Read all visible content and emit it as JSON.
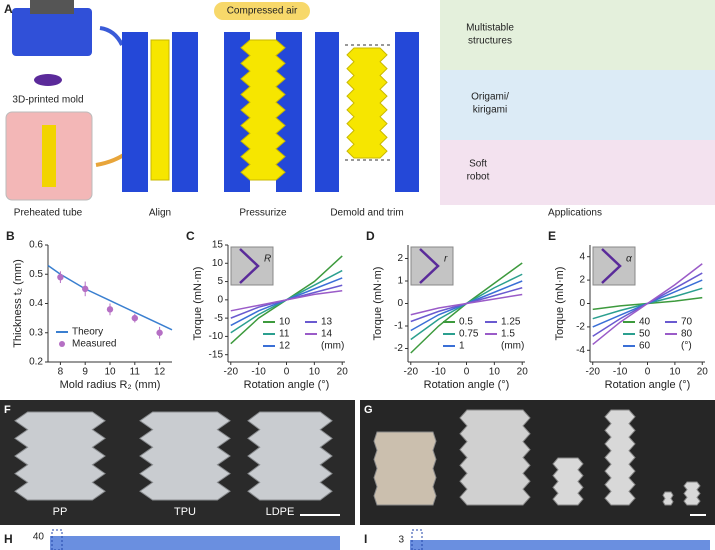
{
  "panel_a": {
    "label": "A",
    "mold": "3D-printed mold",
    "tube": "Preheated tube",
    "air": "Compressed air",
    "steps": [
      "Align",
      "Pressurize",
      "Demold and trim"
    ],
    "applications": [
      [
        "Multistable",
        "structures"
      ],
      [
        "Origami/",
        "kirigami"
      ],
      [
        "Soft",
        "robot"
      ]
    ],
    "applications_title": "Applications"
  },
  "chart_data": [
    {
      "type": "line",
      "panel": "B",
      "xlabel": "Mold radius R₂ (mm)",
      "ylabel": "Thickness t₂ (mm)",
      "xlim": [
        7.5,
        12.5
      ],
      "xticks": [
        8,
        9,
        10,
        11,
        12
      ],
      "ylim": [
        0.2,
        0.6
      ],
      "yticks": [
        0.2,
        0.3,
        0.4,
        0.5,
        0.6
      ],
      "legend": "lower left",
      "series": [
        {
          "name": "Theory",
          "color": "#3a7fd0",
          "x": [
            7.5,
            8,
            9,
            10,
            11,
            12,
            12.5
          ],
          "values": [
            0.53,
            0.5,
            0.45,
            0.41,
            0.37,
            0.33,
            0.31
          ]
        },
        {
          "name": "Measured",
          "color": "#b56fc4",
          "marker": "point",
          "x": [
            8,
            9,
            10,
            11,
            12
          ],
          "values": [
            0.49,
            0.45,
            0.38,
            0.35,
            0.3
          ],
          "errors": [
            0.02,
            0.025,
            0.02,
            0.015,
            0.02
          ]
        }
      ]
    },
    {
      "type": "line",
      "panel": "C",
      "xlabel": "Rotation angle (°)",
      "ylabel": "Torque (mN·m)",
      "inset_label": "R",
      "x": [
        -20,
        -10,
        0,
        10,
        20
      ],
      "xlim": [
        -21,
        21
      ],
      "xticks": [
        -20,
        -10,
        0,
        10,
        20
      ],
      "ylim": [
        -17,
        15
      ],
      "yticks": [
        -15,
        -10,
        -5,
        0,
        5,
        10,
        15
      ],
      "legend": "lower right",
      "legend_unit": "(mm)",
      "series": [
        {
          "name": "10",
          "color": "#3d9a3d",
          "values": [
            -12,
            -5,
            0,
            5,
            12
          ]
        },
        {
          "name": "11",
          "color": "#2b9f8f",
          "values": [
            -9,
            -4,
            0,
            4,
            8
          ]
        },
        {
          "name": "12",
          "color": "#3a6fd6",
          "values": [
            -7,
            -3,
            0,
            3,
            6
          ]
        },
        {
          "name": "13",
          "color": "#6a5ad0",
          "values": [
            -5,
            -2,
            0,
            2,
            4
          ]
        },
        {
          "name": "14",
          "color": "#9a5bc8",
          "values": [
            -3,
            -1.5,
            0,
            1.5,
            2.5
          ]
        }
      ]
    },
    {
      "type": "line",
      "panel": "D",
      "xlabel": "Rotation angle (°)",
      "ylabel": "Torque (mN·m)",
      "inset_label": "r",
      "x": [
        -20,
        -10,
        0,
        10,
        20
      ],
      "xlim": [
        -21,
        21
      ],
      "xticks": [
        -20,
        -10,
        0,
        10,
        20
      ],
      "ylim": [
        -2.6,
        2.6
      ],
      "yticks": [
        -2,
        -1,
        0,
        1,
        2
      ],
      "legend": "lower right",
      "legend_unit": "(mm)",
      "series": [
        {
          "name": "0.5",
          "color": "#3d9a3d",
          "values": [
            -2.2,
            -1,
            0,
            0.9,
            1.8
          ]
        },
        {
          "name": "0.75",
          "color": "#2b9f8f",
          "values": [
            -1.6,
            -0.7,
            0,
            0.7,
            1.3
          ]
        },
        {
          "name": "1",
          "color": "#3a6fd6",
          "values": [
            -1.2,
            -0.5,
            0,
            0.5,
            1
          ]
        },
        {
          "name": "1.25",
          "color": "#6a5ad0",
          "values": [
            -0.8,
            -0.35,
            0,
            0.35,
            0.7
          ]
        },
        {
          "name": "1.5",
          "color": "#9a5bc8",
          "values": [
            -0.5,
            -0.2,
            0,
            0.2,
            0.4
          ]
        }
      ]
    },
    {
      "type": "line",
      "panel": "E",
      "xlabel": "Rotation angle (°)",
      "ylabel": "Torque (mN·m)",
      "inset_label": "α",
      "x": [
        -20,
        -10,
        0,
        10,
        20
      ],
      "xlim": [
        -21,
        21
      ],
      "xticks": [
        -20,
        -10,
        0,
        10,
        20
      ],
      "ylim": [
        -5,
        5
      ],
      "yticks": [
        -4,
        -2,
        0,
        2,
        4
      ],
      "legend": "lower right",
      "legend_unit": "(°)",
      "series": [
        {
          "name": "40",
          "color": "#3d9a3d",
          "values": [
            -0.5,
            -0.2,
            0,
            0.2,
            0.5
          ]
        },
        {
          "name": "50",
          "color": "#2b9f8f",
          "values": [
            -1.3,
            -0.6,
            0,
            0.6,
            1.3
          ]
        },
        {
          "name": "60",
          "color": "#3a6fd6",
          "values": [
            -2,
            -1,
            0,
            1,
            2
          ]
        },
        {
          "name": "70",
          "color": "#6a5ad0",
          "values": [
            -2.8,
            -1.3,
            0,
            1.3,
            2.6
          ]
        },
        {
          "name": "80",
          "color": "#9a5bc8",
          "values": [
            -3.5,
            -1.6,
            0,
            1.6,
            3.4
          ]
        }
      ]
    }
  ],
  "panel_f": {
    "label": "F",
    "materials": [
      "PP",
      "TPU",
      "LDPE"
    ]
  },
  "panel_g": {
    "label": "G"
  },
  "panel_h": {
    "label": "H",
    "ytick": "40"
  },
  "panel_i": {
    "label": "I",
    "ytick": "3"
  }
}
